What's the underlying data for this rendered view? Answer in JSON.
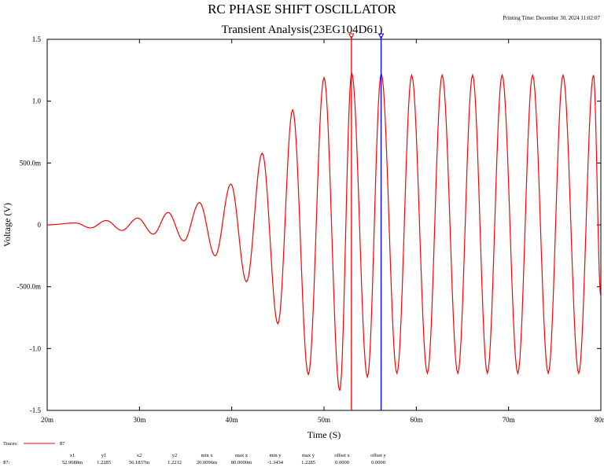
{
  "chart_data": {
    "type": "line",
    "title": "RC PHASE SHIFT OSCILLATOR",
    "subtitle": "Transient Analysis(23EG104D61)",
    "printing_time": "Printing Time: December 30, 2024 11:02:07",
    "xlabel": "Time (S)",
    "ylabel": "Voltage (V)",
    "xlim": [
      0.02,
      0.08
    ],
    "ylim": [
      -1.5,
      1.5
    ],
    "x_ticks": [
      {
        "value": 0.02,
        "label": "20m"
      },
      {
        "value": 0.03,
        "label": "30m"
      },
      {
        "value": 0.04,
        "label": "40m"
      },
      {
        "value": 0.05,
        "label": "50m"
      },
      {
        "value": 0.06,
        "label": "60m"
      },
      {
        "value": 0.07,
        "label": "70m"
      },
      {
        "value": 0.08,
        "label": "80m"
      }
    ],
    "y_ticks": [
      {
        "value": 1.5,
        "label": "1.5"
      },
      {
        "value": 1.0,
        "label": "1.0"
      },
      {
        "value": 0.5,
        "label": "500.0m"
      },
      {
        "value": 0,
        "label": "0"
      },
      {
        "value": -0.5,
        "label": "-500.0m"
      },
      {
        "value": -1.0,
        "label": "-1.0"
      },
      {
        "value": -1.5,
        "label": "-1.5"
      }
    ],
    "grid": false,
    "series": [
      {
        "name": "$7",
        "color": "#ff0000",
        "description_peaks": [
          {
            "x": 0.02,
            "y": 0.0
          },
          {
            "x": 0.0231,
            "y": 0.015
          },
          {
            "x": 0.0247,
            "y": -0.025
          },
          {
            "x": 0.0264,
            "y": 0.035
          },
          {
            "x": 0.0281,
            "y": -0.045
          },
          {
            "x": 0.0298,
            "y": 0.055
          },
          {
            "x": 0.0315,
            "y": -0.075
          },
          {
            "x": 0.0331,
            "y": 0.1
          },
          {
            "x": 0.0348,
            "y": -0.13
          },
          {
            "x": 0.0365,
            "y": 0.18
          },
          {
            "x": 0.0382,
            "y": -0.25
          },
          {
            "x": 0.0399,
            "y": 0.33
          },
          {
            "x": 0.0416,
            "y": -0.46
          },
          {
            "x": 0.0433,
            "y": 0.58
          },
          {
            "x": 0.045,
            "y": -0.8
          },
          {
            "x": 0.0466,
            "y": 0.93
          },
          {
            "x": 0.0483,
            "y": -1.21
          },
          {
            "x": 0.05,
            "y": 1.19
          },
          {
            "x": 0.0517,
            "y": -1.34
          },
          {
            "x": 0.053,
            "y": 1.2285
          },
          {
            "x": 0.0547,
            "y": -1.23
          },
          {
            "x": 0.0562,
            "y": 1.2212
          },
          {
            "x": 0.0579,
            "y": -1.2
          },
          {
            "x": 0.0595,
            "y": 1.21
          },
          {
            "x": 0.0612,
            "y": -1.2
          },
          {
            "x": 0.0628,
            "y": 1.21
          },
          {
            "x": 0.0645,
            "y": -1.2
          },
          {
            "x": 0.0661,
            "y": 1.21
          },
          {
            "x": 0.0677,
            "y": -1.2
          },
          {
            "x": 0.0693,
            "y": 1.21
          },
          {
            "x": 0.071,
            "y": -1.2
          },
          {
            "x": 0.0726,
            "y": 1.21
          },
          {
            "x": 0.0743,
            "y": -1.2
          },
          {
            "x": 0.0759,
            "y": 1.21
          },
          {
            "x": 0.0776,
            "y": -1.2
          },
          {
            "x": 0.0792,
            "y": 1.21
          },
          {
            "x": 0.08,
            "y": -0.58
          }
        ]
      }
    ],
    "cursors": [
      {
        "name": "cursor-1",
        "x": 0.0529688,
        "color": "#ff0000"
      },
      {
        "name": "cursor-2",
        "x": 0.0561837,
        "color": "#0000ff"
      }
    ]
  },
  "footer": {
    "traces_label": "Traces:",
    "trace_name": "$7",
    "row_label": "$7:",
    "headers": [
      "x1",
      "y1",
      "x2",
      "y2",
      "min x",
      "max x",
      "min y",
      "max y",
      "offset x",
      "offset y"
    ],
    "values": [
      "52.9688m",
      "1.2285",
      "56.1837m",
      "1.2212",
      "20.0096m",
      "80.0000m",
      "-1.3434",
      "1.2285",
      "0.0000",
      "0.0000"
    ]
  }
}
